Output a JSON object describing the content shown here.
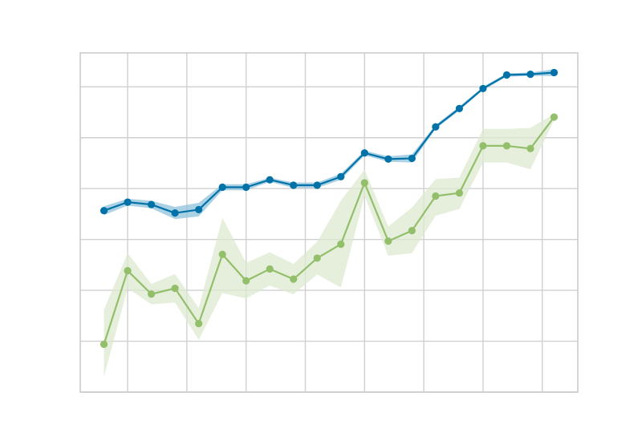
{
  "chart_data": {
    "type": "line",
    "title": "",
    "xlabel": "",
    "ylabel": "",
    "grid": true,
    "xlim": [
      -1,
      20
    ],
    "ylim": [
      0,
      100
    ],
    "x": [
      0,
      1,
      2,
      3,
      4,
      5,
      6,
      7,
      8,
      9,
      10,
      11,
      12,
      13,
      14,
      15,
      16,
      17,
      18,
      19
    ],
    "series": [
      {
        "color": "#0072a8",
        "band_color": "#8fc1db",
        "values": [
          53.5,
          56.0,
          55.3,
          52.8,
          53.8,
          60.4,
          60.4,
          62.6,
          61.0,
          61.0,
          63.5,
          70.5,
          68.7,
          68.9,
          78.2,
          83.6,
          89.5,
          93.5,
          93.7,
          94.2
        ],
        "lower": [
          52.2,
          55.0,
          54.2,
          51.0,
          51.8,
          59.5,
          59.5,
          62.0,
          60.2,
          60.2,
          62.6,
          69.8,
          67.9,
          67.7,
          77.6,
          83.0,
          89.0,
          93.0,
          93.2,
          93.2
        ],
        "upper": [
          54.8,
          57.0,
          56.4,
          54.6,
          55.8,
          61.3,
          61.3,
          63.2,
          61.8,
          61.8,
          64.4,
          71.2,
          69.5,
          70.1,
          78.8,
          84.2,
          90.0,
          94.0,
          94.2,
          95.2
        ]
      },
      {
        "color": "#93bf6b",
        "band_color": "#dcead0",
        "values": [
          14.1,
          35.8,
          28.9,
          30.6,
          20.2,
          40.6,
          32.8,
          36.3,
          33.3,
          39.5,
          43.6,
          61.7,
          44.5,
          47.6,
          57.8,
          58.7,
          72.6,
          72.6,
          71.8,
          81.1
        ],
        "lower": [
          4.5,
          30.6,
          25.9,
          26.4,
          15.4,
          29.2,
          27.6,
          31.4,
          28.8,
          34.7,
          30.8,
          57.9,
          40.2,
          41.0,
          52.0,
          54.0,
          67.7,
          67.7,
          65.7,
          80.2
        ],
        "upper": [
          24.2,
          41.0,
          31.9,
          34.8,
          24.8,
          51.4,
          38.1,
          41.2,
          37.8,
          44.3,
          56.4,
          65.6,
          48.8,
          54.4,
          62.8,
          63.2,
          77.6,
          77.6,
          77.9,
          82.0
        ]
      }
    ]
  }
}
